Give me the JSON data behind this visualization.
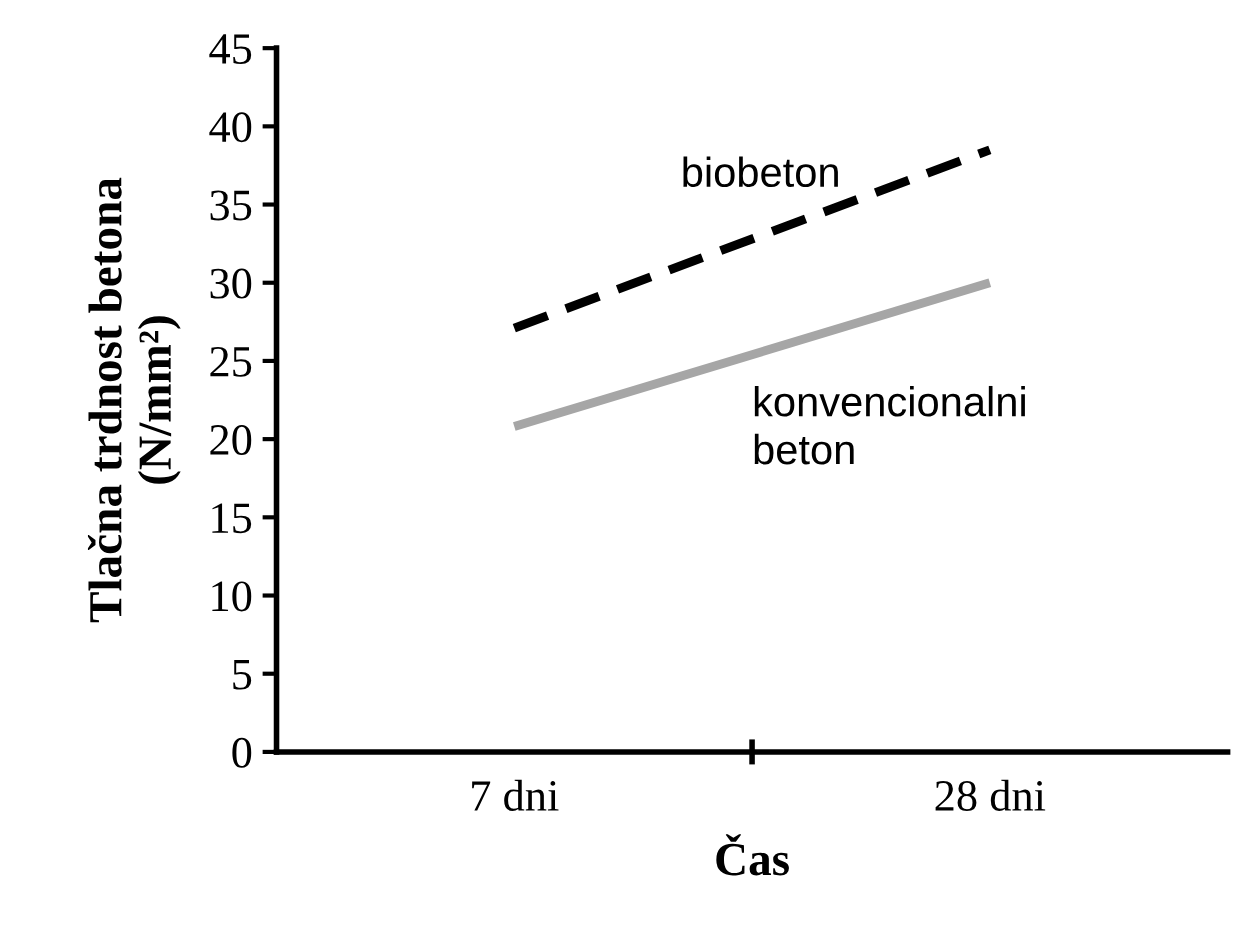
{
  "chart_data": {
    "type": "line",
    "xlabel": "Čas",
    "ylabel": "Tlačna trdnost betona\n(N/mm²)",
    "categories": [
      "7 dni",
      "28 dni"
    ],
    "series": [
      {
        "name": "biobeton",
        "color": "#000000",
        "line_style": "dashed",
        "values": [
          27.1,
          38.5
        ]
      },
      {
        "name": "konvencionalni\nbeton",
        "color": "#a6a6a6",
        "line_style": "solid",
        "values": [
          20.8,
          30.0
        ]
      }
    ],
    "ylim": [
      0,
      45
    ],
    "yticks": [
      0,
      5,
      10,
      15,
      20,
      25,
      30,
      35,
      40,
      45
    ],
    "grid": false,
    "legend": false,
    "marker": "none"
  }
}
